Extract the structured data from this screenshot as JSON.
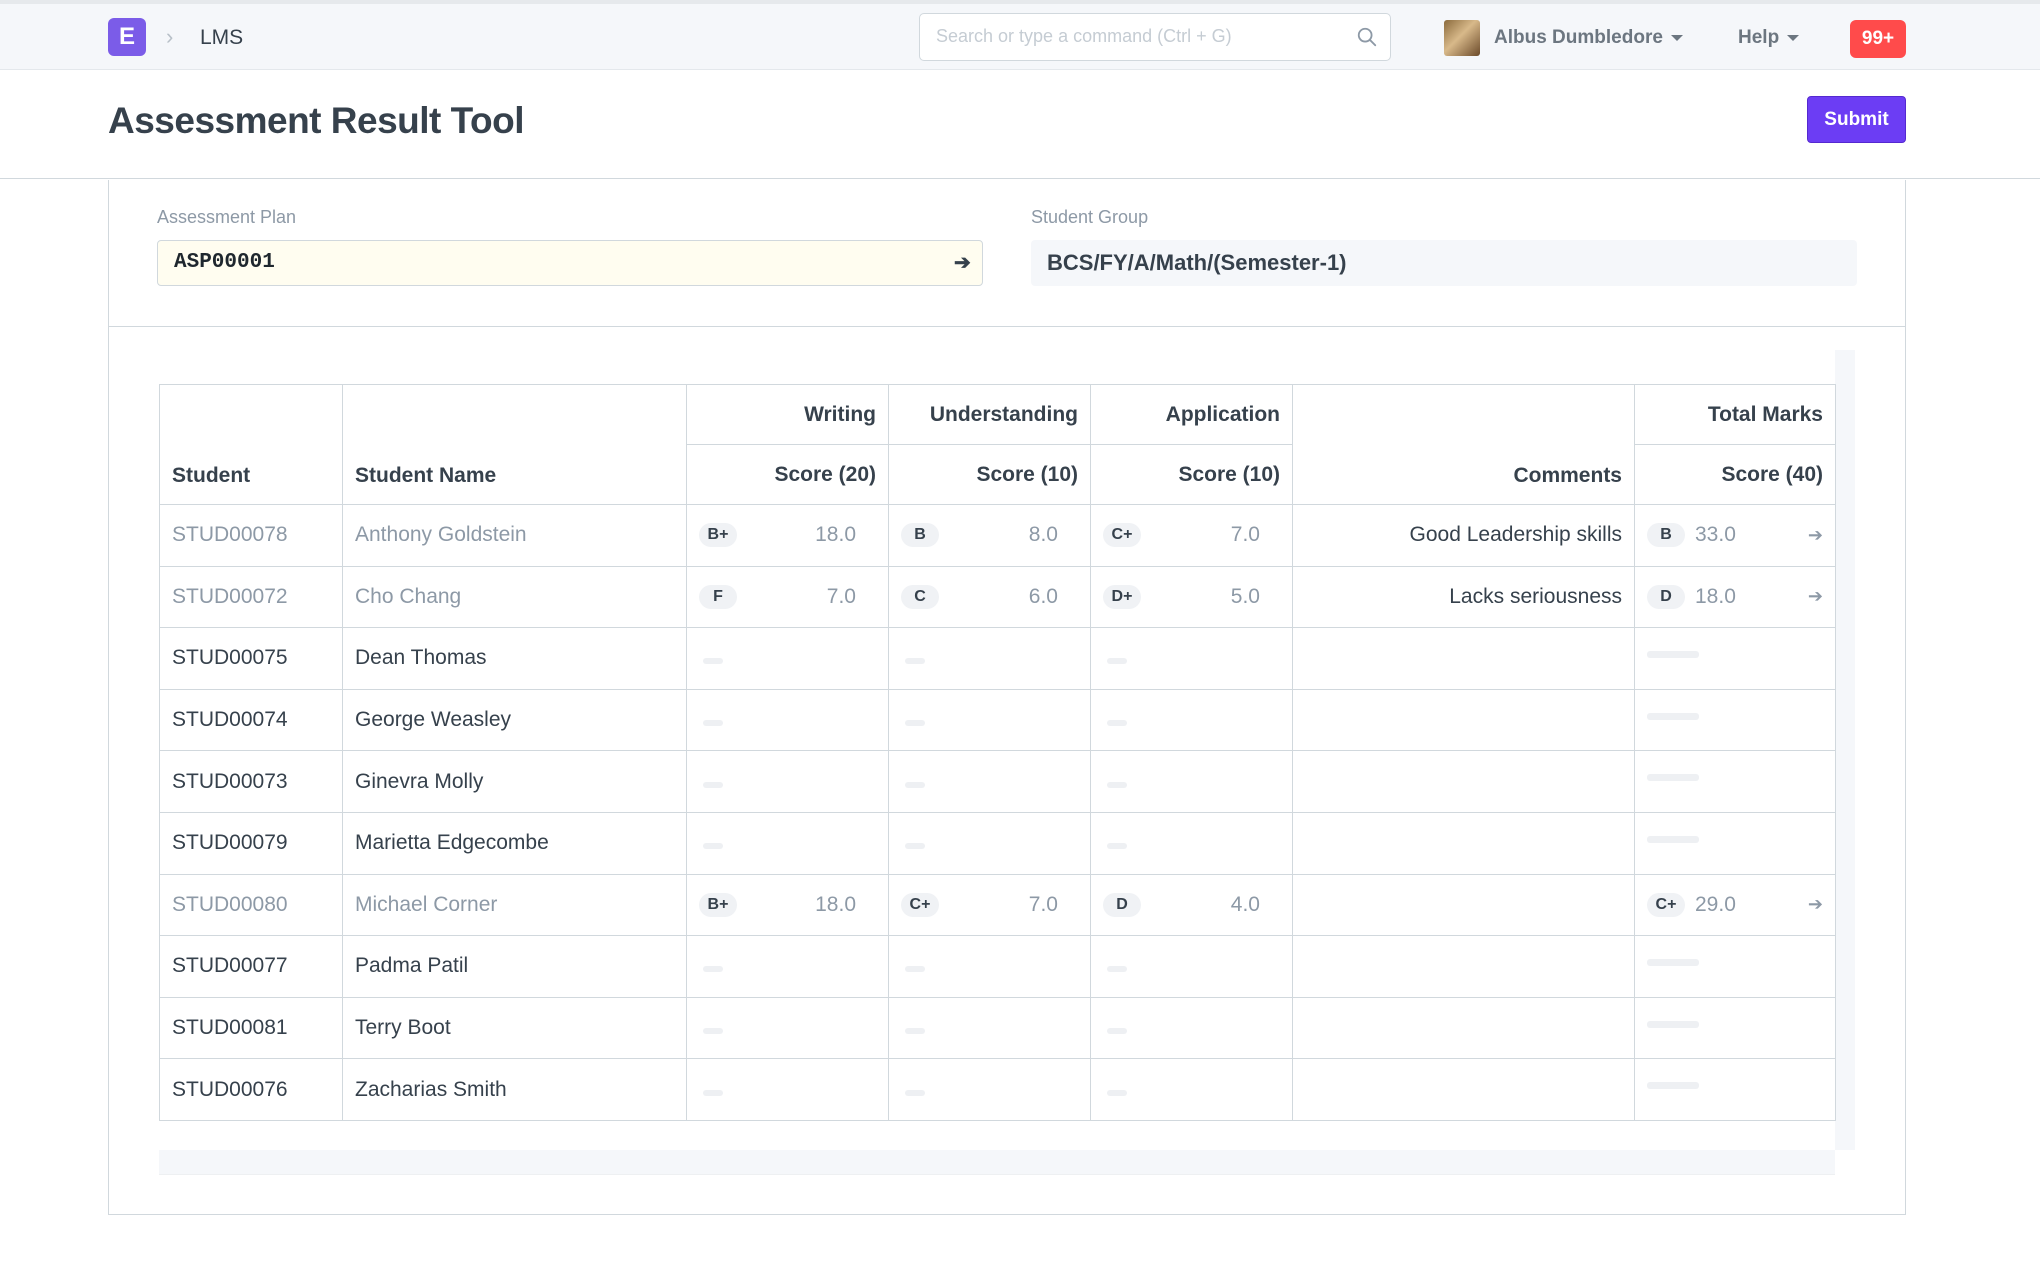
{
  "navbar": {
    "logo_letter": "E",
    "breadcrumb": "LMS",
    "search_placeholder": "Search or type a command (Ctrl + G)",
    "user_name": "Albus Dumbledore",
    "help_label": "Help",
    "notification_count": "99+"
  },
  "page": {
    "title": "Assessment Result Tool",
    "submit_label": "Submit"
  },
  "form": {
    "assessment_plan_label": "Assessment Plan",
    "assessment_plan_value": "ASP00001",
    "student_group_label": "Student Group",
    "student_group_value": "BCS/FY/A/Math/(Semester-1)"
  },
  "grid": {
    "headers": {
      "student": "Student",
      "student_name": "Student Name",
      "writing": "Writing",
      "understanding": "Understanding",
      "application": "Application",
      "comments": "Comments",
      "total_marks": "Total Marks",
      "writing_score": "Score (20)",
      "understanding_score": "Score (10)",
      "application_score": "Score (10)",
      "total_score": "Score (40)"
    },
    "rows": [
      {
        "student": "STUD00078",
        "name": "Anthony Goldstein",
        "w_grade": "B+",
        "w_score": "18.0",
        "u_grade": "B",
        "u_score": "8.0",
        "a_grade": "C+",
        "a_score": "7.0",
        "comment": "Good Leadership skills",
        "t_grade": "B",
        "t_score": "33.0"
      },
      {
        "student": "STUD00072",
        "name": "Cho Chang",
        "w_grade": "F",
        "w_score": "7.0",
        "u_grade": "C",
        "u_score": "6.0",
        "a_grade": "D+",
        "a_score": "5.0",
        "comment": "Lacks seriousness",
        "t_grade": "D",
        "t_score": "18.0"
      },
      {
        "student": "STUD00075",
        "name": "Dean Thomas"
      },
      {
        "student": "STUD00074",
        "name": "George Weasley"
      },
      {
        "student": "STUD00073",
        "name": "Ginevra Molly"
      },
      {
        "student": "STUD00079",
        "name": "Marietta Edgecombe"
      },
      {
        "student": "STUD00080",
        "name": "Michael Corner",
        "w_grade": "B+",
        "w_score": "18.0",
        "u_grade": "C+",
        "u_score": "7.0",
        "a_grade": "D",
        "a_score": "4.0",
        "comment": "",
        "t_grade": "C+",
        "t_score": "29.0"
      },
      {
        "student": "STUD00077",
        "name": "Padma Patil"
      },
      {
        "student": "STUD00081",
        "name": "Terry Boot"
      },
      {
        "student": "STUD00076",
        "name": "Zacharias Smith"
      }
    ]
  },
  "colors": {
    "primary": "#6c3df4",
    "logo": "#7b5ce8",
    "notification": "#ff4b4b"
  },
  "icons": {
    "search": "search-icon",
    "link": "arrow-right-icon",
    "breadcrumb_separator": "chevron-right-icon"
  }
}
